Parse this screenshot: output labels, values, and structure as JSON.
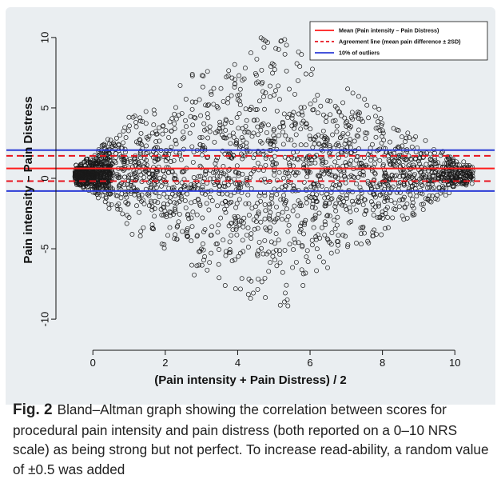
{
  "chart_data": {
    "type": "scatter",
    "title": "",
    "xlabel": "(Pain intensity + Pain Distress) / 2",
    "ylabel": "Pain intensity – Pain Distress",
    "xlim": [
      -0.8,
      10.9
    ],
    "ylim": [
      -11.3,
      11.3
    ],
    "xticks": [
      0,
      2,
      4,
      6,
      8,
      10
    ],
    "yticks": [
      -10,
      -5,
      0,
      5,
      10
    ],
    "grid": false,
    "legend_position": "top-right",
    "legend": [
      {
        "label": "Mean (Pain intensity – Pain Distress)",
        "style": "solid",
        "color": "#ff1a1a"
      },
      {
        "label": "Agreement line (mean pain difference ± 2SD)",
        "style": "dashed",
        "color": "#e8141e"
      },
      {
        "label": "10% of outliers",
        "style": "solid",
        "color": "#2b3bd6"
      }
    ],
    "reference_lines": [
      {
        "kind": "mean",
        "y": 0.7,
        "color": "#ff1a1a",
        "style": "solid"
      },
      {
        "kind": "agreement-upper",
        "y": 1.6,
        "color": "#e8141e",
        "style": "dashed"
      },
      {
        "kind": "agreement-lower",
        "y": -0.2,
        "color": "#e8141e",
        "style": "dashed"
      },
      {
        "kind": "outlier-upper",
        "y": 2.0,
        "color": "#2b3bd6",
        "style": "solid"
      },
      {
        "kind": "outlier-lower",
        "y": -0.9,
        "color": "#2b3bd6",
        "style": "solid"
      }
    ],
    "points": {
      "description": "approximately 2500 scores, one per patient, with a random value of ±0.5 added; spread widens from x≈0 (near y=0) to x≈5 (y from -10.5 to 10.4) then narrows toward x≈10.5",
      "marker": "open-circle",
      "marker_color": "#1a1a1a",
      "n": 2500,
      "x_range": [
        -0.5,
        10.5
      ],
      "y_range": [
        -10.5,
        10.4
      ],
      "envelope": [
        {
          "x": -0.5,
          "y_half_range": 0.7
        },
        {
          "x": 0,
          "y_half_range": 1.3
        },
        {
          "x": 1,
          "y_half_range": 4.2
        },
        {
          "x": 2,
          "y_half_range": 5.5
        },
        {
          "x": 3,
          "y_half_range": 8.0
        },
        {
          "x": 4,
          "y_half_range": 9.0
        },
        {
          "x": 5,
          "y_half_range": 10.4
        },
        {
          "x": 6,
          "y_half_range": 8.2
        },
        {
          "x": 7,
          "y_half_range": 6.2
        },
        {
          "x": 8,
          "y_half_range": 4.5
        },
        {
          "x": 9,
          "y_half_range": 2.8
        },
        {
          "x": 10,
          "y_half_range": 1.2
        },
        {
          "x": 10.5,
          "y_half_range": 0.7
        }
      ]
    }
  },
  "caption": {
    "figure_label": "Fig. 2",
    "text": "Bland–Altman graph showing the correlation between scores for procedural pain intensity and pain distress (both reported on a 0–10 NRS scale) as being strong but not perfect. To increase read-ability, a random value of ±0.5 was added"
  }
}
